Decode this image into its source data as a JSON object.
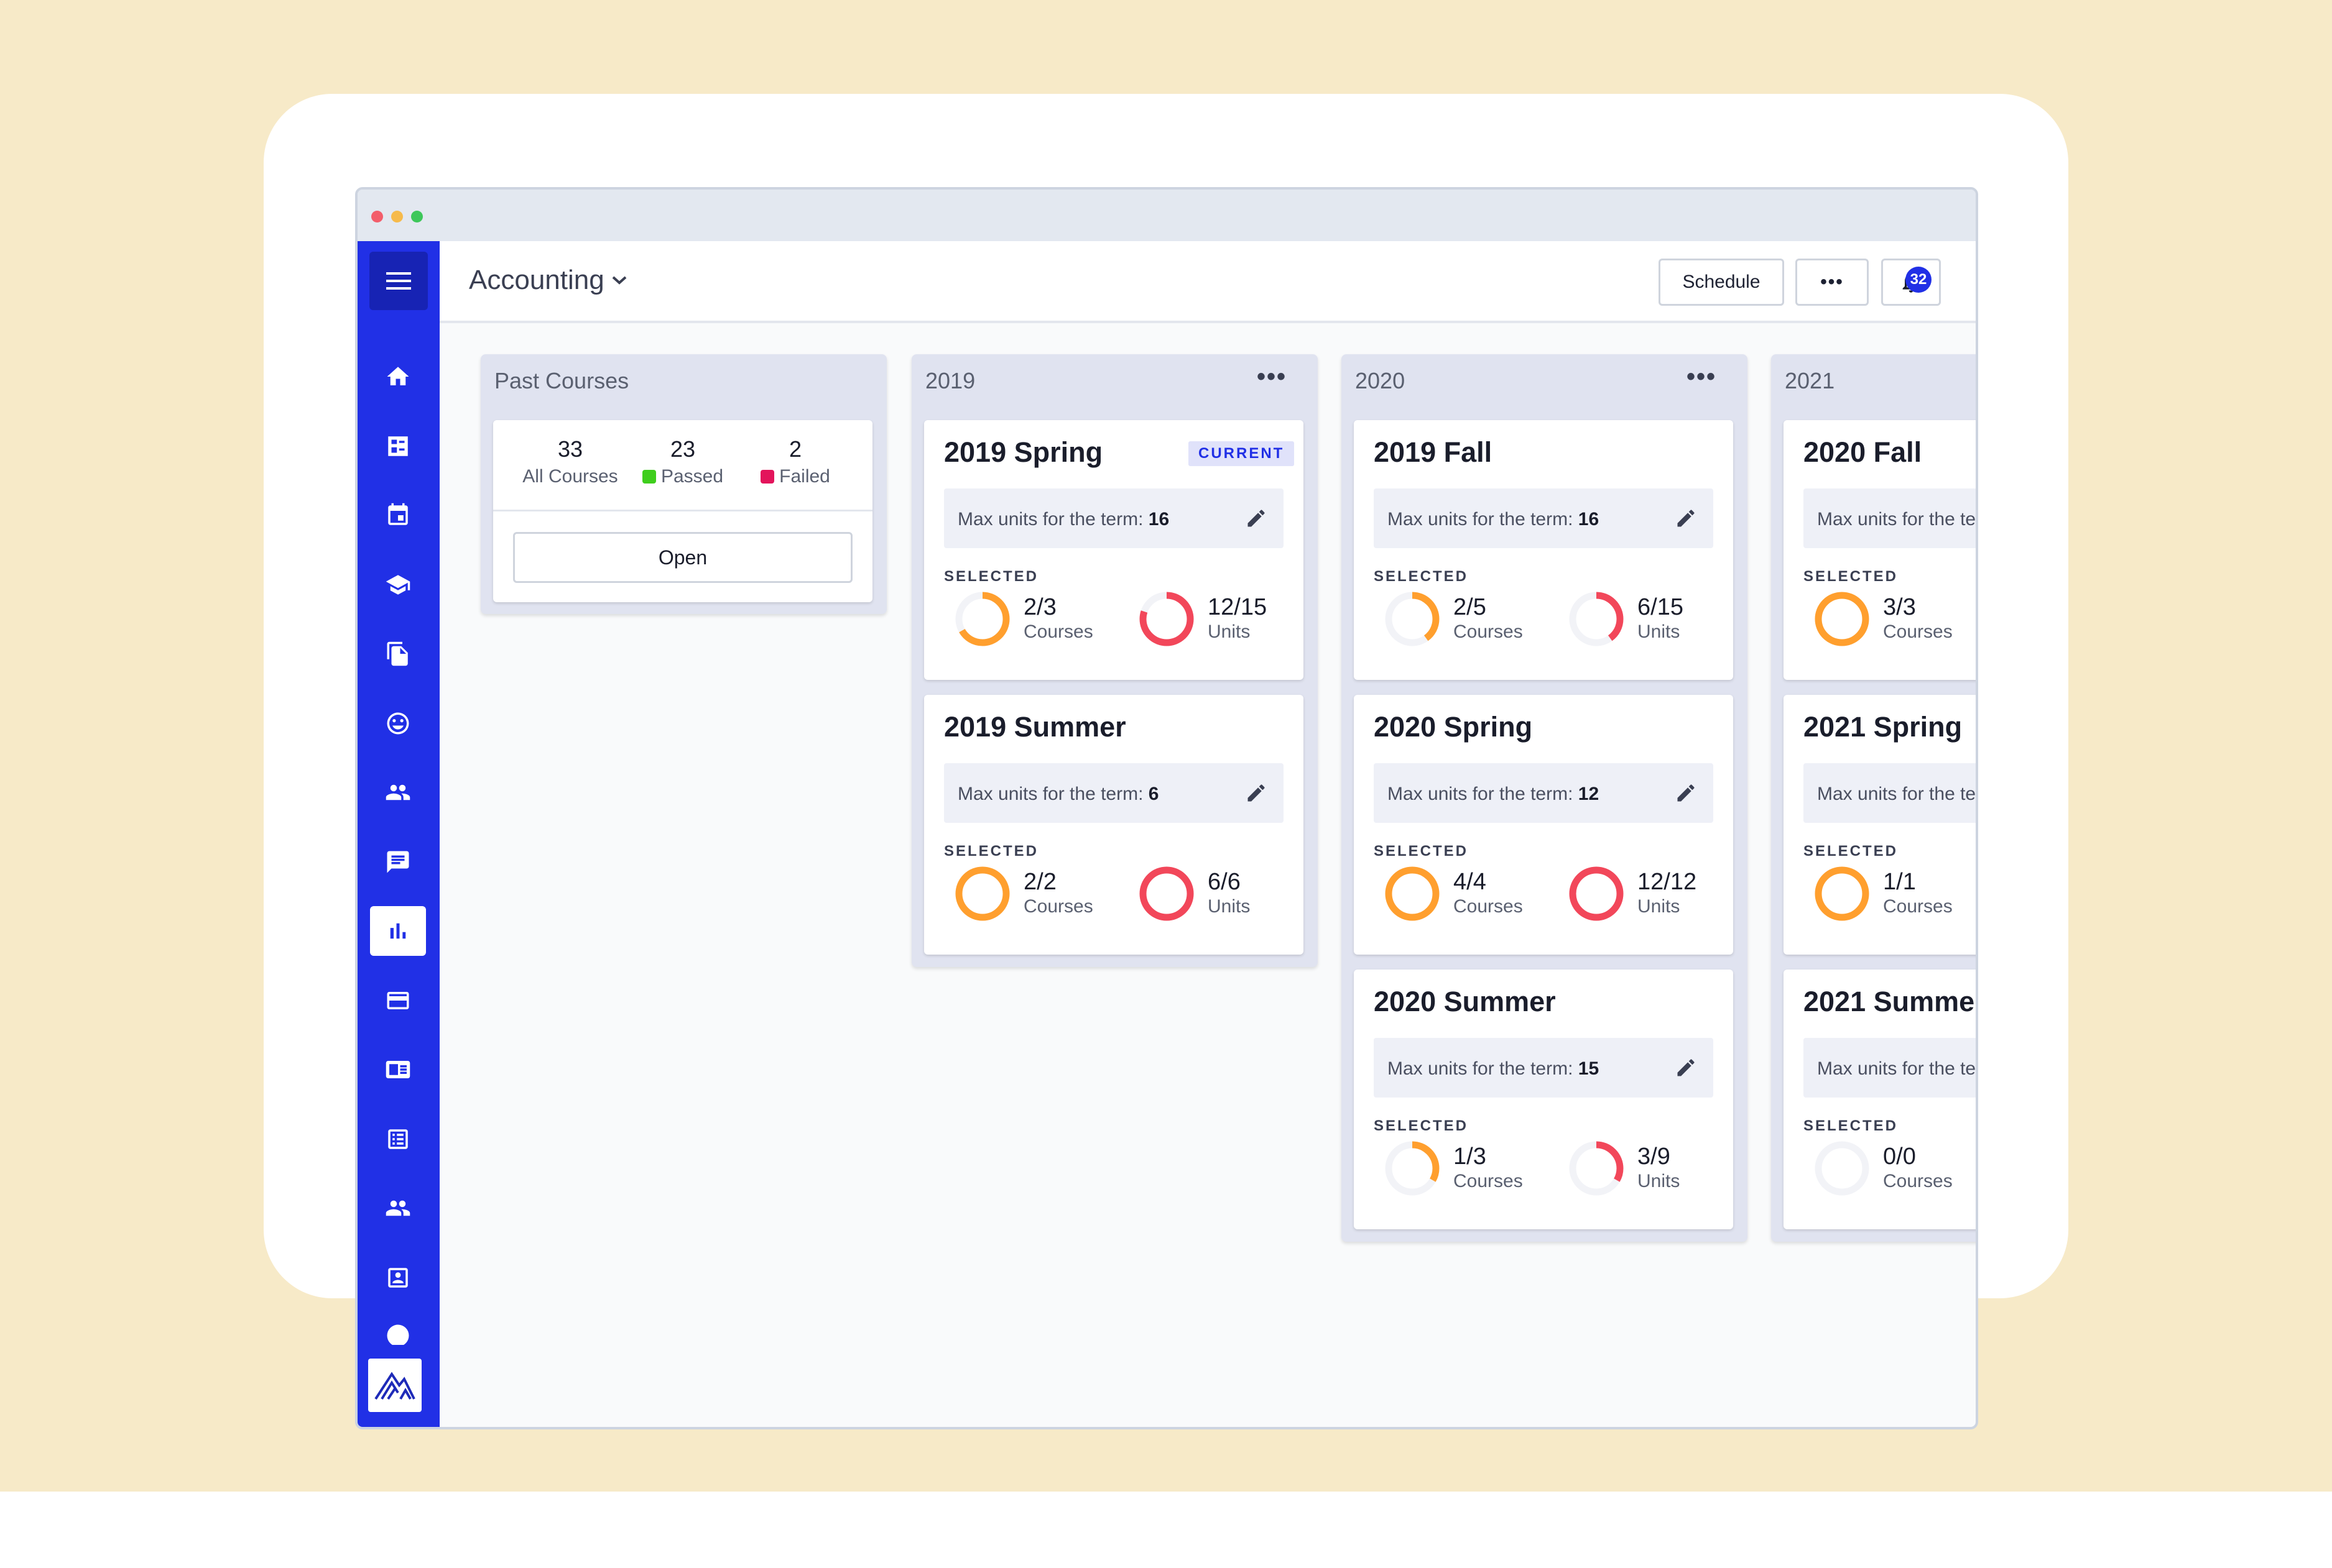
{
  "app": {
    "title": "Accounting",
    "buttons": {
      "schedule": "Schedule",
      "more": "•••"
    },
    "notifications_count": "32",
    "accent": "#2130e6"
  },
  "sidebar": {
    "items": [
      {
        "icon": "home-icon"
      },
      {
        "icon": "dashboard-icon"
      },
      {
        "icon": "calendar-icon"
      },
      {
        "icon": "graduation-cap-icon"
      },
      {
        "icon": "documents-icon"
      },
      {
        "icon": "smiley-icon"
      },
      {
        "icon": "people-icon"
      },
      {
        "icon": "chat-icon"
      },
      {
        "icon": "chart-icon",
        "active": true
      },
      {
        "icon": "credit-card-icon"
      },
      {
        "icon": "id-card-icon"
      },
      {
        "icon": "list-icon"
      },
      {
        "icon": "group-icon"
      },
      {
        "icon": "contact-card-icon"
      }
    ]
  },
  "past_courses": {
    "title": "Past Courses",
    "all": {
      "value": "33",
      "label": "All Courses"
    },
    "passed": {
      "value": "23",
      "label": "Passed",
      "color": "#3fce1d"
    },
    "failed": {
      "value": "2",
      "label": "Failed",
      "color": "#e3145b"
    },
    "open_label": "Open"
  },
  "common": {
    "max_units_label": "Max units for the term:",
    "selected_label": "SELECTED",
    "courses_label": "Courses",
    "units_label": "Units",
    "current_badge": "CURRENT",
    "colors": {
      "courses": "#ff9f2e",
      "units": "#f2475a",
      "track": "#f2f3f7"
    }
  },
  "years": [
    {
      "title": "2019",
      "more": "•••",
      "terms": [
        {
          "name": "2019 Spring",
          "current": true,
          "max_units": "16",
          "courses": "2/3",
          "courses_frac": 0.667,
          "units": "12/15",
          "units_frac": 0.8
        },
        {
          "name": "2019 Summer",
          "max_units": "6",
          "courses": "2/2",
          "courses_frac": 1,
          "units": "6/6",
          "units_frac": 1
        }
      ]
    },
    {
      "title": "2020",
      "more": "•••",
      "terms": [
        {
          "name": "2019 Fall",
          "max_units": "16",
          "courses": "2/5",
          "courses_frac": 0.4,
          "units": "6/15",
          "units_frac": 0.4
        },
        {
          "name": "2020 Spring",
          "max_units": "12",
          "courses": "4/4",
          "courses_frac": 1,
          "units": "12/12",
          "units_frac": 1
        },
        {
          "name": "2020 Summer",
          "max_units": "15",
          "courses": "1/3",
          "courses_frac": 0.333,
          "units": "3/9",
          "units_frac": 0.333
        }
      ]
    },
    {
      "title": "2021",
      "terms": [
        {
          "name": "2020 Fall",
          "courses": "3/3",
          "courses_frac": 1
        },
        {
          "name": "2021 Spring",
          "courses": "1/1",
          "courses_frac": 1
        },
        {
          "name": "2021 Summe",
          "courses": "0/0",
          "courses_frac": 0
        }
      ]
    }
  ]
}
